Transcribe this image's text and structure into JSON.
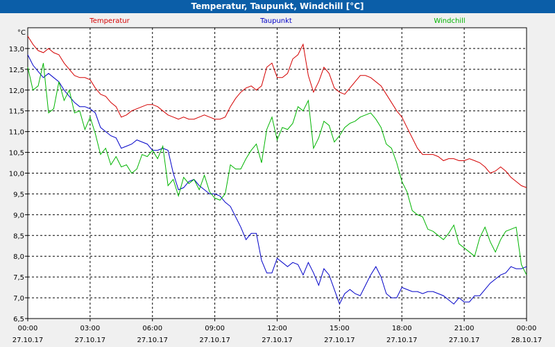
{
  "window": {
    "title": "Temperatur, Taupunkt, Windchill [°C]"
  },
  "chart_data": {
    "type": "line",
    "title": "Temperatur, Taupunkt, Windchill [°C]",
    "ylabel": "°C",
    "ylim": [
      6.5,
      13.5
    ],
    "xlim": [
      0,
      24
    ],
    "grid": true,
    "legend_placement": "top",
    "y_ticks": [
      "6,5",
      "7,0",
      "7,5",
      "8,0",
      "8,5",
      "9,0",
      "9,5",
      "10,0",
      "10,5",
      "11,0",
      "11,5",
      "12,0",
      "12,5",
      "13,0"
    ],
    "x_ticks": [
      {
        "time": "00:00",
        "date": "27.10.17"
      },
      {
        "time": "03:00",
        "date": "27.10.17"
      },
      {
        "time": "06:00",
        "date": "27.10.17"
      },
      {
        "time": "09:00",
        "date": "27.10.17"
      },
      {
        "time": "12:00",
        "date": "27.10.17"
      },
      {
        "time": "15:00",
        "date": "27.10.17"
      },
      {
        "time": "18:00",
        "date": "27.10.17"
      },
      {
        "time": "21:00",
        "date": "27.10.17"
      },
      {
        "time": "00:00",
        "date": "28.10.17"
      }
    ],
    "series": [
      {
        "name": "Temperatur",
        "color": "#d40000",
        "x": [
          0,
          0.25,
          0.5,
          0.75,
          1,
          1.25,
          1.5,
          1.75,
          2,
          2.25,
          2.5,
          2.75,
          3,
          3.25,
          3.5,
          3.75,
          4,
          4.25,
          4.5,
          4.75,
          5,
          5.25,
          5.5,
          5.75,
          6,
          6.25,
          6.5,
          6.75,
          7,
          7.25,
          7.5,
          7.75,
          8,
          8.25,
          8.5,
          8.75,
          9,
          9.25,
          9.5,
          9.75,
          10,
          10.25,
          10.5,
          10.75,
          11,
          11.25,
          11.5,
          11.75,
          12,
          12.25,
          12.5,
          12.75,
          13,
          13.25,
          13.5,
          13.75,
          14,
          14.25,
          14.5,
          14.75,
          15,
          15.25,
          15.5,
          15.75,
          16,
          16.25,
          16.5,
          16.75,
          17,
          17.25,
          17.5,
          17.75,
          18,
          18.25,
          18.5,
          18.75,
          19,
          19.25,
          19.5,
          19.75,
          20,
          20.25,
          20.5,
          20.75,
          21,
          21.25,
          21.5,
          21.75,
          22,
          22.25,
          22.5,
          22.75,
          23,
          23.25,
          23.5,
          23.75,
          24
        ],
        "values": [
          13.3,
          13.1,
          12.95,
          12.9,
          13.0,
          12.9,
          12.85,
          12.65,
          12.5,
          12.35,
          12.3,
          12.3,
          12.25,
          12.05,
          11.9,
          11.85,
          11.7,
          11.6,
          11.35,
          11.4,
          11.5,
          11.55,
          11.6,
          11.65,
          11.65,
          11.6,
          11.5,
          11.4,
          11.35,
          11.3,
          11.35,
          11.3,
          11.3,
          11.35,
          11.4,
          11.35,
          11.3,
          11.3,
          11.35,
          11.6,
          11.8,
          11.95,
          12.05,
          12.1,
          12.0,
          12.1,
          12.55,
          12.65,
          12.3,
          12.3,
          12.4,
          12.75,
          12.85,
          13.1,
          12.35,
          11.95,
          12.2,
          12.55,
          12.4,
          12.05,
          11.95,
          11.9,
          12.05,
          12.2,
          12.35,
          12.35,
          12.3,
          12.2,
          12.1,
          11.9,
          11.7,
          11.5,
          11.35,
          11.1,
          10.85,
          10.6,
          10.45,
          10.45,
          10.45,
          10.4,
          10.3,
          10.35,
          10.35,
          10.3,
          10.3,
          10.35,
          10.3,
          10.25,
          10.15,
          10.0,
          10.05,
          10.15,
          10.05,
          9.9,
          9.8,
          9.7,
          9.65
        ]
      },
      {
        "name": "Taupunkt",
        "color": "#0000c8",
        "x": [
          0,
          0.25,
          0.5,
          0.75,
          1,
          1.25,
          1.5,
          1.75,
          2,
          2.25,
          2.5,
          2.75,
          3,
          3.25,
          3.5,
          3.75,
          4,
          4.25,
          4.5,
          4.75,
          5,
          5.25,
          5.5,
          5.75,
          6,
          6.25,
          6.5,
          6.75,
          7,
          7.25,
          7.5,
          7.75,
          8,
          8.25,
          8.5,
          8.75,
          9,
          9.25,
          9.5,
          9.75,
          10,
          10.25,
          10.5,
          10.75,
          11,
          11.25,
          11.5,
          11.75,
          12,
          12.25,
          12.5,
          12.75,
          13,
          13.25,
          13.5,
          13.75,
          14,
          14.25,
          14.5,
          14.75,
          15,
          15.25,
          15.5,
          15.75,
          16,
          16.25,
          16.5,
          16.75,
          17,
          17.25,
          17.5,
          17.75,
          18,
          18.25,
          18.5,
          18.75,
          19,
          19.25,
          19.5,
          19.75,
          20,
          20.25,
          20.5,
          20.75,
          21,
          21.25,
          21.5,
          21.75,
          22,
          22.25,
          22.5,
          22.75,
          23,
          23.25,
          23.5,
          23.75,
          24
        ],
        "values": [
          12.85,
          12.6,
          12.45,
          12.3,
          12.4,
          12.3,
          12.2,
          12.0,
          11.85,
          11.7,
          11.6,
          11.6,
          11.55,
          11.45,
          11.1,
          11.0,
          10.9,
          10.85,
          10.6,
          10.65,
          10.7,
          10.8,
          10.75,
          10.7,
          10.55,
          10.55,
          10.6,
          10.55,
          10.0,
          9.6,
          9.65,
          9.8,
          9.85,
          9.7,
          9.6,
          9.5,
          9.5,
          9.45,
          9.3,
          9.2,
          8.95,
          8.7,
          8.4,
          8.55,
          8.55,
          7.9,
          7.6,
          7.6,
          7.95,
          7.85,
          7.75,
          7.85,
          7.8,
          7.55,
          7.85,
          7.6,
          7.3,
          7.7,
          7.55,
          7.2,
          6.85,
          7.1,
          7.2,
          7.1,
          7.05,
          7.3,
          7.55,
          7.75,
          7.5,
          7.1,
          7.0,
          7.0,
          7.25,
          7.2,
          7.15,
          7.15,
          7.1,
          7.15,
          7.15,
          7.1,
          7.05,
          6.95,
          6.85,
          7.0,
          6.9,
          6.9,
          7.05,
          7.05,
          7.2,
          7.35,
          7.45,
          7.55,
          7.6,
          7.75,
          7.7,
          7.7,
          7.75
        ]
      },
      {
        "name": "Windchill",
        "color": "#00b400",
        "x": [
          0,
          0.25,
          0.5,
          0.75,
          1,
          1.25,
          1.5,
          1.75,
          2,
          2.25,
          2.5,
          2.75,
          3,
          3.25,
          3.5,
          3.75,
          4,
          4.25,
          4.5,
          4.75,
          5,
          5.25,
          5.5,
          5.75,
          6,
          6.25,
          6.5,
          6.75,
          7,
          7.25,
          7.5,
          7.75,
          8,
          8.25,
          8.5,
          8.75,
          9,
          9.25,
          9.5,
          9.75,
          10,
          10.25,
          10.5,
          10.75,
          11,
          11.25,
          11.5,
          11.75,
          12,
          12.25,
          12.5,
          12.75,
          13,
          13.25,
          13.5,
          13.75,
          14,
          14.25,
          14.5,
          14.75,
          15,
          15.25,
          15.5,
          15.75,
          16,
          16.25,
          16.5,
          16.75,
          17,
          17.25,
          17.5,
          17.75,
          18,
          18.25,
          18.5,
          18.75,
          19,
          19.25,
          19.5,
          19.75,
          20,
          20.25,
          20.5,
          20.75,
          21,
          21.25,
          21.5,
          21.75,
          22,
          22.25,
          22.5,
          22.75,
          23,
          23.25,
          23.5,
          23.75,
          24
        ],
        "values": [
          12.55,
          12.0,
          12.1,
          12.65,
          11.45,
          11.55,
          12.2,
          11.75,
          12.0,
          11.45,
          11.5,
          11.05,
          11.35,
          10.95,
          10.45,
          10.6,
          10.2,
          10.4,
          10.15,
          10.2,
          10.0,
          10.1,
          10.45,
          10.4,
          10.55,
          10.35,
          10.65,
          9.7,
          9.85,
          9.45,
          9.9,
          9.75,
          9.85,
          9.6,
          9.95,
          9.55,
          9.4,
          9.35,
          9.5,
          10.2,
          10.1,
          10.1,
          10.35,
          10.55,
          10.7,
          10.25,
          11.05,
          11.35,
          10.8,
          11.1,
          11.05,
          11.2,
          11.6,
          11.5,
          11.75,
          10.6,
          10.85,
          11.25,
          11.15,
          10.75,
          10.9,
          11.1,
          11.2,
          11.25,
          11.35,
          11.4,
          11.45,
          11.3,
          11.1,
          10.7,
          10.6,
          10.25,
          9.8,
          9.55,
          9.1,
          9.0,
          8.95,
          8.65,
          8.6,
          8.5,
          8.4,
          8.55,
          8.75,
          8.3,
          8.2,
          8.1,
          8.0,
          8.45,
          8.7,
          8.35,
          8.1,
          8.4,
          8.6,
          8.65,
          8.7,
          7.8,
          7.55
        ]
      }
    ]
  }
}
